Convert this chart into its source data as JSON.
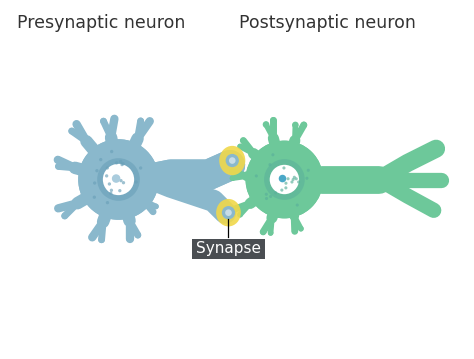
{
  "bg_color": "#ffffff",
  "pre_color": "#8ab8cc",
  "post_color": "#6dc89a",
  "nucleus_fill": "#ffffff",
  "nucleus_ring": "#6aa0b8",
  "post_nucleus_ring": "#5ab09a",
  "synapse_yellow": "#f0d84a",
  "synapse_box": "#4a4e52",
  "synapse_text": "#ffffff",
  "label_color": "#333333",
  "label_pre": "Presynaptic neuron",
  "label_post": "Postsynaptic neuron",
  "label_synapse": "Synapse",
  "fig_width": 4.74,
  "fig_height": 3.59,
  "dpi": 100
}
